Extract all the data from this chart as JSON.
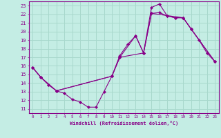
{
  "xlabel": "Windchill (Refroidissement éolien,°C)",
  "background_color": "#c4ede4",
  "line_color": "#880088",
  "grid_color": "#a8d8cc",
  "xlim": [
    -0.5,
    23.5
  ],
  "ylim": [
    10.5,
    23.5
  ],
  "xticks": [
    0,
    1,
    2,
    3,
    4,
    5,
    6,
    7,
    8,
    9,
    10,
    11,
    12,
    13,
    14,
    15,
    16,
    17,
    18,
    19,
    20,
    21,
    22,
    23
  ],
  "yticks": [
    11,
    12,
    13,
    14,
    15,
    16,
    17,
    18,
    19,
    20,
    21,
    22,
    23
  ],
  "line1_x": [
    0,
    1,
    2,
    3,
    4,
    5,
    6,
    7,
    8,
    9,
    10,
    11,
    12,
    13,
    14,
    15,
    16,
    17,
    18,
    19,
    20,
    21,
    22,
    23
  ],
  "line1_y": [
    15.8,
    14.7,
    13.8,
    13.1,
    12.8,
    12.1,
    11.8,
    11.2,
    11.2,
    13.0,
    14.8,
    17.2,
    18.5,
    19.5,
    17.5,
    22.1,
    22.2,
    21.8,
    21.6,
    21.6,
    20.3,
    19.0,
    17.5,
    16.5
  ],
  "line2_x": [
    0,
    1,
    3,
    10,
    11,
    14,
    15,
    16,
    17,
    18,
    19,
    20,
    23
  ],
  "line2_y": [
    15.8,
    14.7,
    13.1,
    14.8,
    17.0,
    17.5,
    22.8,
    23.2,
    21.8,
    21.6,
    21.6,
    20.3,
    16.5
  ],
  "line3_x": [
    0,
    1,
    2,
    3,
    10,
    11,
    13,
    14,
    15,
    19,
    20,
    23
  ],
  "line3_y": [
    15.8,
    14.7,
    13.8,
    13.1,
    14.8,
    17.0,
    19.5,
    17.5,
    22.1,
    21.6,
    20.3,
    16.5
  ]
}
